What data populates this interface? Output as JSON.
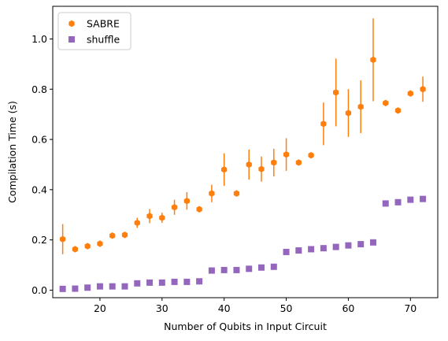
{
  "chart_data": {
    "type": "scatter",
    "xlabel": "Number of Qubits in Input Circuit",
    "ylabel": "Compilation Time (s)",
    "xlim": [
      12.4,
      74.4
    ],
    "ylim": [
      -0.03,
      1.13
    ],
    "xticks": [
      20,
      30,
      40,
      50,
      60,
      70
    ],
    "yticks": [
      0.0,
      0.2,
      0.4,
      0.6,
      0.8,
      1.0
    ],
    "xtick_labels": [
      "20",
      "30",
      "40",
      "50",
      "60",
      "70"
    ],
    "ytick_labels": [
      "0.0",
      "0.2",
      "0.4",
      "0.6",
      "0.8",
      "1.0"
    ],
    "grid": false,
    "legend_position": "top-left",
    "series": [
      {
        "name": "SABRE",
        "color": "#ff7f0e",
        "marker": "hexagon",
        "x": [
          14,
          16,
          18,
          20,
          22,
          24,
          26,
          28,
          30,
          32,
          34,
          36,
          38,
          40,
          42,
          44,
          46,
          48,
          50,
          52,
          54,
          56,
          58,
          60,
          62,
          64,
          66,
          68,
          70,
          72
        ],
        "y": [
          0.203,
          0.163,
          0.175,
          0.185,
          0.217,
          0.22,
          0.268,
          0.295,
          0.288,
          0.33,
          0.355,
          0.322,
          0.385,
          0.48,
          0.385,
          0.5,
          0.482,
          0.508,
          0.54,
          0.508,
          0.537,
          0.662,
          0.787,
          0.705,
          0.73,
          0.917,
          0.745,
          0.715,
          0.783,
          0.8
        ],
        "yerr": [
          0.06,
          0.008,
          0.01,
          0.01,
          0.008,
          0.008,
          0.02,
          0.028,
          0.02,
          0.03,
          0.035,
          0.01,
          0.035,
          0.065,
          0.01,
          0.06,
          0.05,
          0.055,
          0.065,
          0.01,
          0.01,
          0.085,
          0.135,
          0.095,
          0.105,
          0.165,
          0.01,
          0.01,
          0.01,
          0.05
        ]
      },
      {
        "name": "shuffle",
        "color": "#9467bd",
        "marker": "square",
        "x": [
          14,
          16,
          18,
          20,
          22,
          24,
          26,
          28,
          30,
          32,
          34,
          36,
          38,
          40,
          42,
          44,
          46,
          48,
          50,
          52,
          54,
          56,
          58,
          60,
          62,
          64,
          66,
          68,
          70,
          72
        ],
        "y": [
          0.005,
          0.006,
          0.01,
          0.015,
          0.015,
          0.015,
          0.027,
          0.03,
          0.03,
          0.033,
          0.033,
          0.035,
          0.078,
          0.08,
          0.08,
          0.085,
          0.09,
          0.093,
          0.152,
          0.158,
          0.163,
          0.167,
          0.172,
          0.178,
          0.183,
          0.19,
          0.345,
          0.35,
          0.36,
          0.363
        ]
      }
    ]
  }
}
